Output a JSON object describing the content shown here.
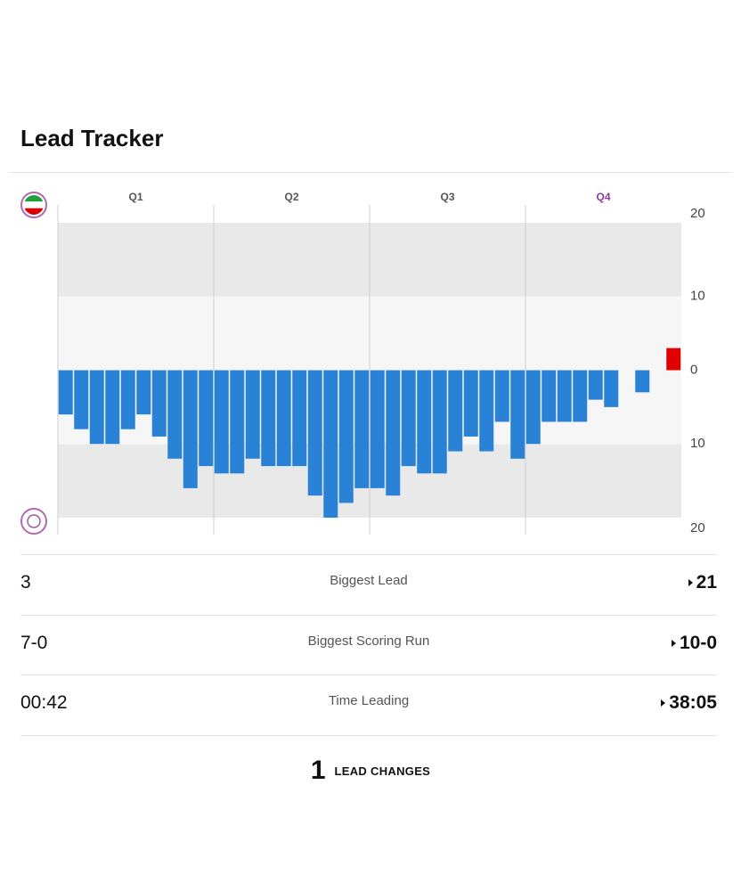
{
  "header": {
    "title": "Lead Tracker"
  },
  "chart_data": {
    "type": "bar",
    "quarters": [
      "Q1",
      "Q2",
      "Q3",
      "Q4"
    ],
    "values": [
      -6,
      -8,
      -10,
      -10,
      -8,
      -6,
      -9,
      -12,
      -16,
      -13,
      -14,
      -14,
      -12,
      -13,
      -13,
      -13,
      -17,
      -20,
      -18,
      -16,
      -16,
      -17,
      -13,
      -14,
      -14,
      -11,
      -9,
      -11,
      -7,
      -12,
      -10,
      -7,
      -7,
      -7,
      -4,
      -5,
      0,
      -3,
      0,
      3
    ],
    "color": "#2a82d6",
    "color_positive": "#e00000",
    "ylim": [
      -20,
      20
    ],
    "yticks": [
      {
        "value": -20,
        "label": "20"
      },
      {
        "value": -10,
        "label": "10"
      },
      0,
      10,
      20
    ],
    "grid": true
  },
  "stats": [
    {
      "left": "3",
      "label": "Biggest Lead",
      "right": "21"
    },
    {
      "left": "7-0",
      "label": "Biggest Scoring Run",
      "right": "10-0"
    },
    {
      "left": "00:42",
      "label": "Time Leading",
      "right": "38:05"
    }
  ],
  "lead_changes": {
    "count": "1",
    "label": "LEAD CHANGES"
  }
}
